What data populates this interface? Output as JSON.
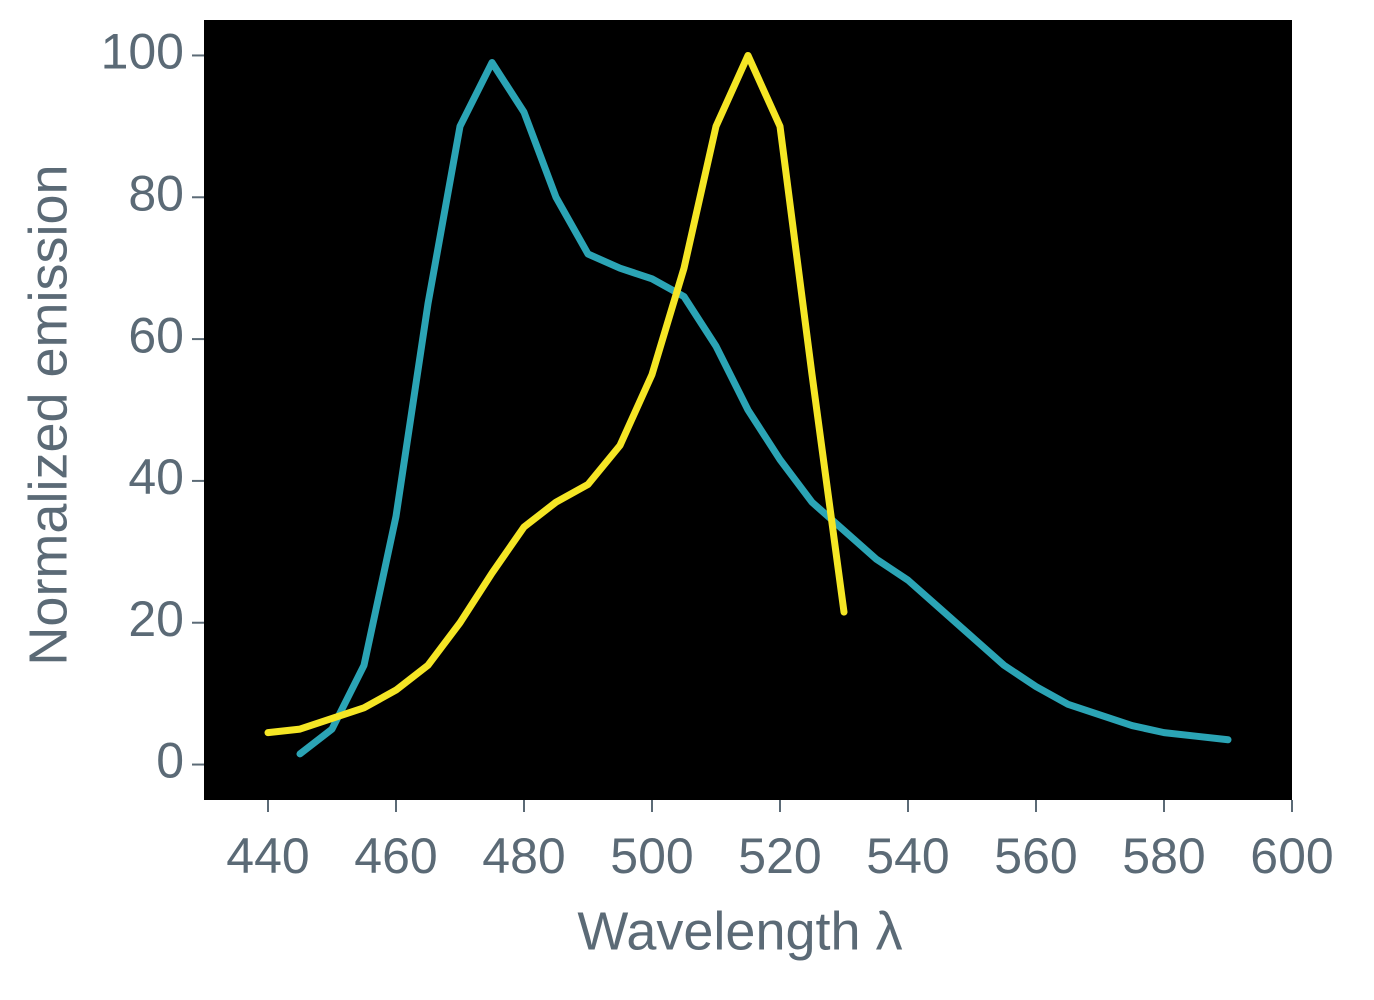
{
  "chart_data": {
    "type": "line",
    "x_label": "Wavelength λ",
    "y_label": "Normalized emission",
    "x": [
      440,
      445,
      450,
      455,
      460,
      465,
      470,
      475,
      480,
      485,
      490,
      495,
      500,
      505,
      510,
      515,
      520,
      525,
      530,
      535,
      540,
      545,
      550,
      555,
      560,
      565,
      570,
      575,
      580,
      585,
      590
    ],
    "series": [
      {
        "color": "#2ba4b5",
        "values": [
          null,
          1.5,
          5,
          14,
          35,
          65,
          90,
          99,
          92,
          80,
          72,
          70,
          68.5,
          66,
          59,
          50,
          43,
          37,
          33,
          29,
          26,
          22,
          18,
          14,
          11,
          8.5,
          7,
          5.5,
          4.5,
          4,
          3.5
        ]
      },
      {
        "color": "#f5e625",
        "values": [
          4.5,
          5,
          6.5,
          8,
          10.5,
          14,
          20,
          27,
          33.5,
          37,
          39.5,
          45,
          55,
          70,
          90,
          100,
          90,
          55,
          21.5,
          null,
          null,
          null,
          null,
          null,
          null,
          null,
          null,
          null,
          null,
          null,
          null
        ]
      }
    ],
    "xlim": [
      430,
      600
    ],
    "ylim": [
      -5,
      105
    ],
    "xticks": [
      440,
      460,
      480,
      500,
      520,
      540,
      560,
      580,
      600
    ],
    "yticks": [
      0,
      20,
      40,
      60,
      80,
      100
    ]
  }
}
